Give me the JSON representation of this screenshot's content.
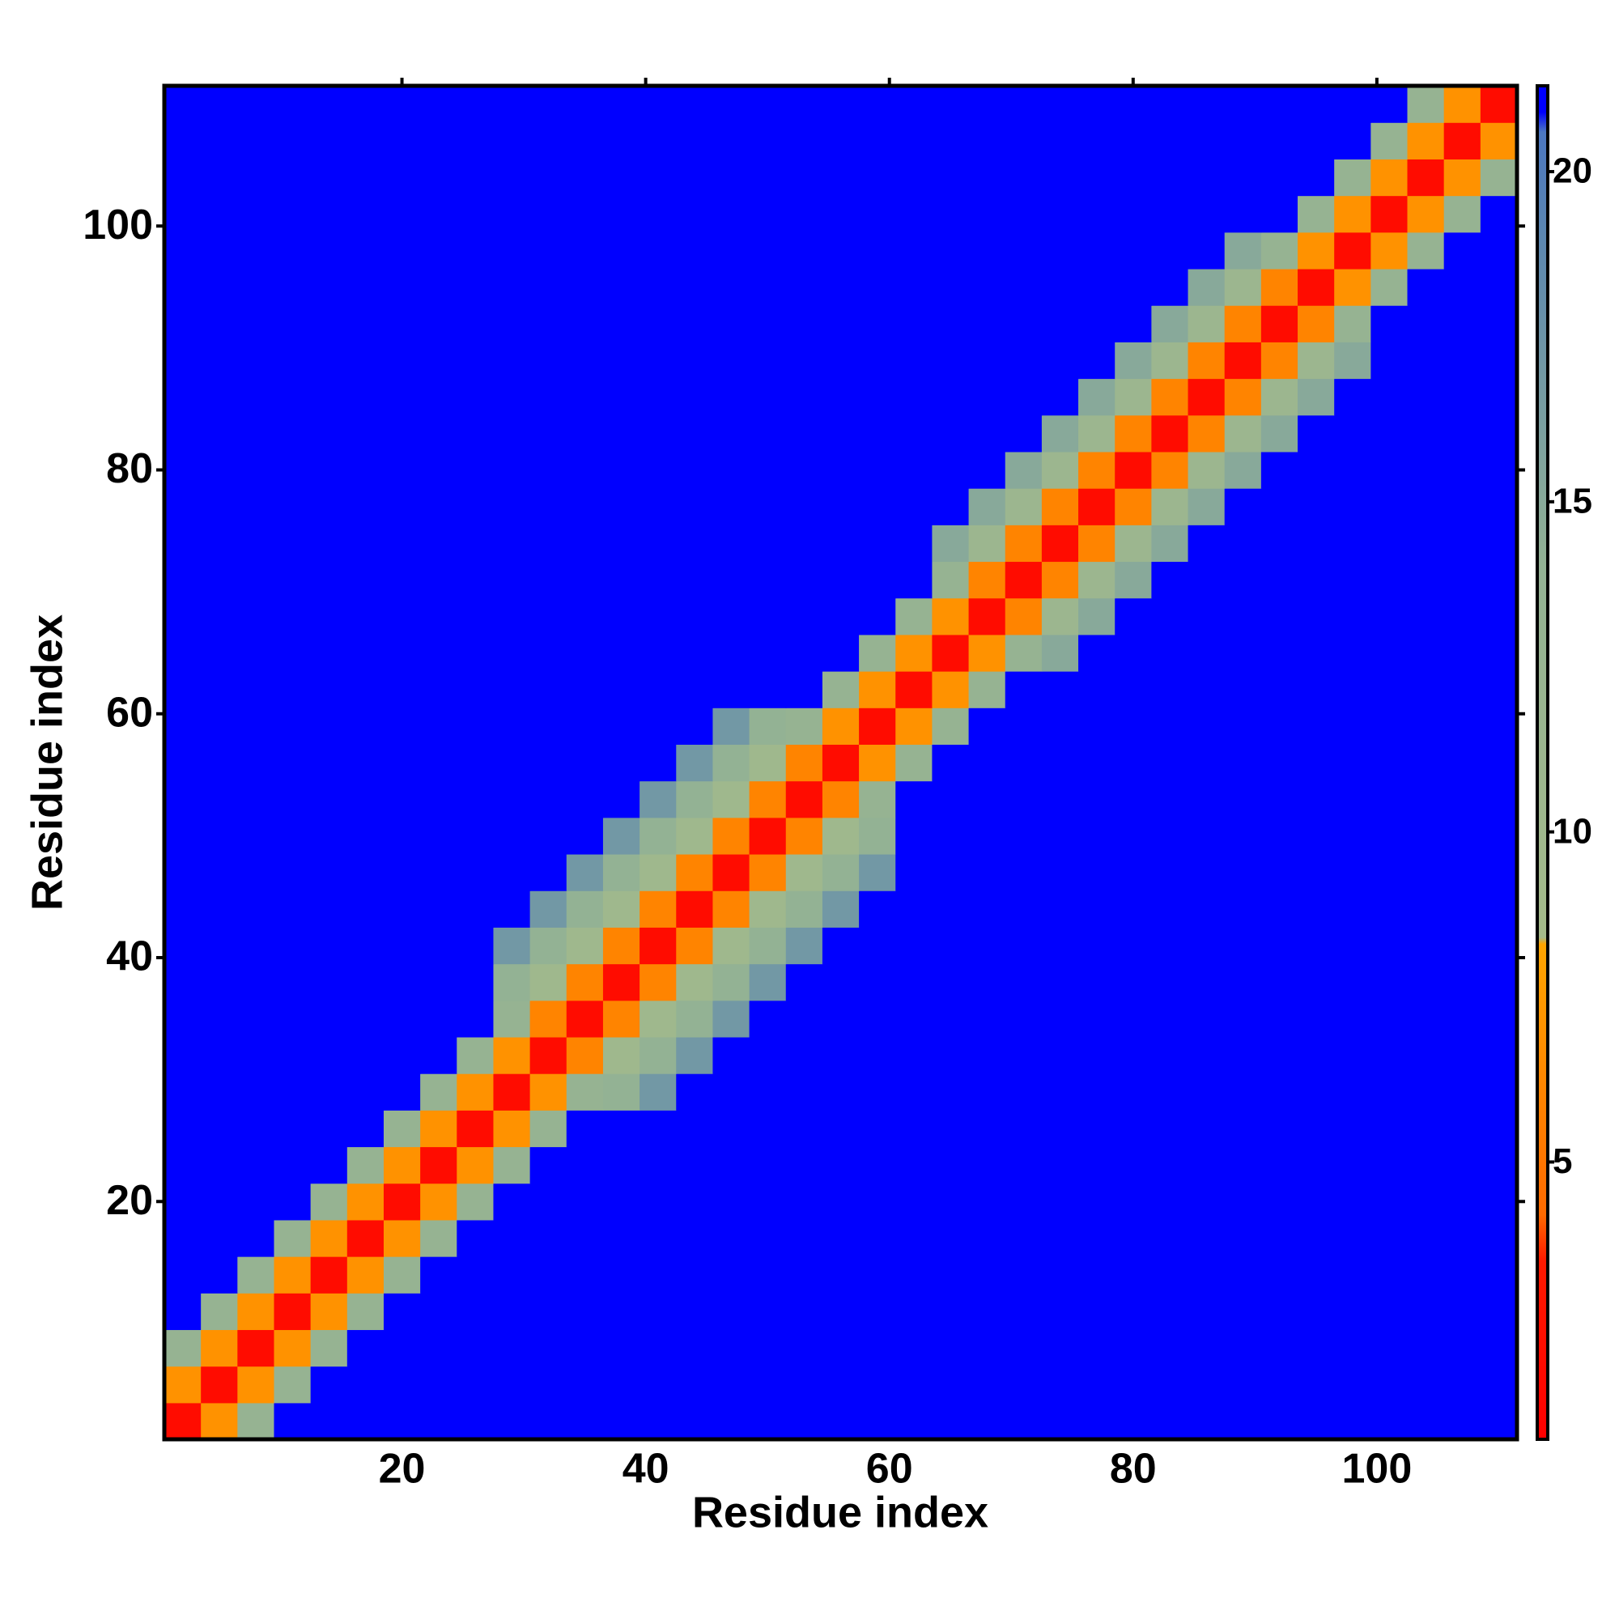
{
  "chart_data": {
    "type": "heatmap",
    "xlabel": "Residue index",
    "ylabel": "Residue index",
    "xlim": [
      0.5,
      111.5
    ],
    "ylim": [
      0.5,
      111.5
    ],
    "xticks": [
      20,
      40,
      60,
      80,
      100
    ],
    "yticks": [
      20,
      40,
      60,
      80,
      100
    ],
    "x": [
      2,
      5,
      8,
      11,
      14,
      17,
      20,
      23,
      26,
      29,
      32,
      35,
      38,
      41,
      44,
      47,
      50,
      53,
      56,
      59,
      62,
      65,
      68,
      71,
      74,
      77,
      80,
      83,
      86,
      89,
      92,
      95,
      98,
      101,
      104,
      107,
      110
    ],
    "y": [
      2,
      5,
      8,
      11,
      14,
      17,
      20,
      23,
      26,
      29,
      32,
      35,
      38,
      41,
      44,
      47,
      50,
      53,
      56,
      59,
      62,
      65,
      68,
      71,
      74,
      77,
      80,
      83,
      86,
      89,
      92,
      95,
      98,
      101,
      104,
      107,
      110
    ],
    "zlim": [
      0.8,
      21.3
    ],
    "zticks": [
      5,
      10,
      15,
      20
    ],
    "colorscale": [
      [
        0.8,
        "#ff0000"
      ],
      [
        3.5,
        "#ff1a00"
      ],
      [
        4.2,
        "#ff6a00"
      ],
      [
        8.3,
        "#ffa500"
      ],
      [
        8.4,
        "#a4ba8a"
      ],
      [
        14,
        "#93b294"
      ],
      [
        19,
        "#5c87b0"
      ],
      [
        20.6,
        "#4c77c0"
      ],
      [
        20.9,
        "#0000ff"
      ],
      [
        21.3,
        "#0000ff"
      ]
    ],
    "values": [
      [
        2,
        7,
        13,
        21,
        21,
        21,
        21,
        21,
        21,
        21,
        21,
        21,
        21,
        21,
        21,
        21,
        21,
        21,
        21,
        21,
        21,
        21,
        21,
        21,
        21,
        21,
        21,
        21,
        21,
        21,
        21,
        21,
        21,
        21,
        21,
        21,
        21
      ],
      [
        7,
        2,
        7,
        13,
        21,
        21,
        21,
        21,
        21,
        21,
        21,
        21,
        21,
        21,
        21,
        21,
        21,
        21,
        21,
        21,
        21,
        21,
        21,
        21,
        21,
        21,
        21,
        21,
        21,
        21,
        21,
        21,
        21,
        21,
        21,
        21,
        21
      ],
      [
        13,
        7,
        2,
        7,
        13,
        21,
        21,
        21,
        21,
        21,
        21,
        21,
        21,
        21,
        21,
        21,
        21,
        21,
        21,
        21,
        21,
        21,
        21,
        21,
        21,
        21,
        21,
        21,
        21,
        21,
        21,
        21,
        21,
        21,
        21,
        21,
        21
      ],
      [
        21,
        13,
        7,
        2,
        7,
        13,
        21,
        21,
        21,
        21,
        21,
        21,
        21,
        21,
        21,
        21,
        21,
        21,
        21,
        21,
        21,
        21,
        21,
        21,
        21,
        21,
        21,
        21,
        21,
        21,
        21,
        21,
        21,
        21,
        21,
        21,
        21
      ],
      [
        21,
        21,
        13,
        7,
        2,
        7,
        13,
        21,
        21,
        21,
        21,
        21,
        21,
        21,
        21,
        21,
        21,
        21,
        21,
        21,
        21,
        21,
        21,
        21,
        21,
        21,
        21,
        21,
        21,
        21,
        21,
        21,
        21,
        21,
        21,
        21,
        21
      ],
      [
        21,
        21,
        21,
        13,
        7,
        2,
        7,
        13,
        21,
        21,
        21,
        21,
        21,
        21,
        21,
        21,
        21,
        21,
        21,
        21,
        21,
        21,
        21,
        21,
        21,
        21,
        21,
        21,
        21,
        21,
        21,
        21,
        21,
        21,
        21,
        21,
        21
      ],
      [
        21,
        21,
        21,
        21,
        13,
        7,
        2,
        7,
        13,
        21,
        21,
        21,
        21,
        21,
        21,
        21,
        21,
        21,
        21,
        21,
        21,
        21,
        21,
        21,
        21,
        21,
        21,
        21,
        21,
        21,
        21,
        21,
        21,
        21,
        21,
        21,
        21
      ],
      [
        21,
        21,
        21,
        21,
        21,
        13,
        7,
        2,
        7,
        13,
        21,
        21,
        21,
        21,
        21,
        21,
        21,
        21,
        21,
        21,
        21,
        21,
        21,
        21,
        21,
        21,
        21,
        21,
        21,
        21,
        21,
        21,
        21,
        21,
        21,
        21,
        21
      ],
      [
        21,
        21,
        21,
        21,
        21,
        21,
        13,
        7,
        2,
        7,
        13,
        21,
        21,
        21,
        21,
        21,
        21,
        21,
        21,
        21,
        21,
        21,
        21,
        21,
        21,
        21,
        21,
        21,
        21,
        21,
        21,
        21,
        21,
        21,
        21,
        21,
        21
      ],
      [
        21,
        21,
        21,
        21,
        21,
        21,
        21,
        13,
        7,
        2,
        7,
        13,
        14,
        17,
        21,
        21,
        21,
        21,
        21,
        21,
        21,
        21,
        21,
        21,
        21,
        21,
        21,
        21,
        21,
        21,
        21,
        21,
        21,
        21,
        21,
        21,
        21
      ],
      [
        21,
        21,
        21,
        21,
        21,
        21,
        21,
        21,
        13,
        7,
        2,
        6,
        10,
        14,
        17,
        21,
        21,
        21,
        21,
        21,
        21,
        21,
        21,
        21,
        21,
        21,
        21,
        21,
        21,
        21,
        21,
        21,
        21,
        21,
        21,
        21,
        21
      ],
      [
        21,
        21,
        21,
        21,
        21,
        21,
        21,
        21,
        21,
        13,
        6,
        2,
        6,
        10,
        14,
        17,
        21,
        21,
        21,
        21,
        21,
        21,
        21,
        21,
        21,
        21,
        21,
        21,
        21,
        21,
        21,
        21,
        21,
        21,
        21,
        21,
        21
      ],
      [
        21,
        21,
        21,
        21,
        21,
        21,
        21,
        21,
        21,
        14,
        10,
        6,
        2,
        6,
        10,
        14,
        17,
        21,
        21,
        21,
        21,
        21,
        21,
        21,
        21,
        21,
        21,
        21,
        21,
        21,
        21,
        21,
        21,
        21,
        21,
        21,
        21
      ],
      [
        21,
        21,
        21,
        21,
        21,
        21,
        21,
        21,
        21,
        17,
        14,
        10,
        6,
        2,
        6,
        10,
        14,
        17,
        21,
        21,
        21,
        21,
        21,
        21,
        21,
        21,
        21,
        21,
        21,
        21,
        21,
        21,
        21,
        21,
        21,
        21,
        21
      ],
      [
        21,
        21,
        21,
        21,
        21,
        21,
        21,
        21,
        21,
        21,
        17,
        14,
        10,
        6,
        2,
        6,
        10,
        14,
        17,
        21,
        21,
        21,
        21,
        21,
        21,
        21,
        21,
        21,
        21,
        21,
        21,
        21,
        21,
        21,
        21,
        21,
        21
      ],
      [
        21,
        21,
        21,
        21,
        21,
        21,
        21,
        21,
        21,
        21,
        21,
        17,
        14,
        10,
        6,
        2,
        6,
        10,
        14,
        17,
        21,
        21,
        21,
        21,
        21,
        21,
        21,
        21,
        21,
        21,
        21,
        21,
        21,
        21,
        21,
        21,
        21
      ],
      [
        21,
        21,
        21,
        21,
        21,
        21,
        21,
        21,
        21,
        21,
        21,
        21,
        17,
        14,
        10,
        6,
        2,
        6,
        10,
        14,
        21,
        21,
        21,
        21,
        21,
        21,
        21,
        21,
        21,
        21,
        21,
        21,
        21,
        21,
        21,
        21,
        21
      ],
      [
        21,
        21,
        21,
        21,
        21,
        21,
        21,
        21,
        21,
        21,
        21,
        21,
        21,
        17,
        14,
        10,
        6,
        2,
        6,
        13,
        21,
        21,
        21,
        21,
        21,
        21,
        21,
        21,
        21,
        21,
        21,
        21,
        21,
        21,
        21,
        21,
        21
      ],
      [
        21,
        21,
        21,
        21,
        21,
        21,
        21,
        21,
        21,
        21,
        21,
        21,
        21,
        21,
        17,
        14,
        10,
        6,
        2,
        7,
        13,
        21,
        21,
        21,
        21,
        21,
        21,
        21,
        21,
        21,
        21,
        21,
        21,
        21,
        21,
        21,
        21
      ],
      [
        21,
        21,
        21,
        21,
        21,
        21,
        21,
        21,
        21,
        21,
        21,
        21,
        21,
        21,
        21,
        17,
        14,
        13,
        7,
        2,
        7,
        13,
        21,
        21,
        21,
        21,
        21,
        21,
        21,
        21,
        21,
        21,
        21,
        21,
        21,
        21,
        21
      ],
      [
        21,
        21,
        21,
        21,
        21,
        21,
        21,
        21,
        21,
        21,
        21,
        21,
        21,
        21,
        21,
        21,
        21,
        21,
        13,
        7,
        2,
        7,
        13,
        21,
        21,
        21,
        21,
        21,
        21,
        21,
        21,
        21,
        21,
        21,
        21,
        21,
        21
      ],
      [
        21,
        21,
        21,
        21,
        21,
        21,
        21,
        21,
        21,
        21,
        21,
        21,
        21,
        21,
        21,
        21,
        21,
        21,
        21,
        13,
        7,
        2,
        7,
        13,
        15,
        21,
        21,
        21,
        21,
        21,
        21,
        21,
        21,
        21,
        21,
        21,
        21
      ],
      [
        21,
        21,
        21,
        21,
        21,
        21,
        21,
        21,
        21,
        21,
        21,
        21,
        21,
        21,
        21,
        21,
        21,
        21,
        21,
        21,
        13,
        7,
        2,
        6,
        11,
        15,
        21,
        21,
        21,
        21,
        21,
        21,
        21,
        21,
        21,
        21,
        21
      ],
      [
        21,
        21,
        21,
        21,
        21,
        21,
        21,
        21,
        21,
        21,
        21,
        21,
        21,
        21,
        21,
        21,
        21,
        21,
        21,
        21,
        21,
        13,
        6,
        2,
        6,
        11,
        15,
        21,
        21,
        21,
        21,
        21,
        21,
        21,
        21,
        21,
        21
      ],
      [
        21,
        21,
        21,
        21,
        21,
        21,
        21,
        21,
        21,
        21,
        21,
        21,
        21,
        21,
        21,
        21,
        21,
        21,
        21,
        21,
        21,
        15,
        11,
        6,
        2,
        6,
        11,
        15,
        21,
        21,
        21,
        21,
        21,
        21,
        21,
        21,
        21
      ],
      [
        21,
        21,
        21,
        21,
        21,
        21,
        21,
        21,
        21,
        21,
        21,
        21,
        21,
        21,
        21,
        21,
        21,
        21,
        21,
        21,
        21,
        21,
        15,
        11,
        6,
        2,
        6,
        11,
        15,
        21,
        21,
        21,
        21,
        21,
        21,
        21,
        21
      ],
      [
        21,
        21,
        21,
        21,
        21,
        21,
        21,
        21,
        21,
        21,
        21,
        21,
        21,
        21,
        21,
        21,
        21,
        21,
        21,
        21,
        21,
        21,
        21,
        15,
        11,
        6,
        2,
        6,
        11,
        15,
        21,
        21,
        21,
        21,
        21,
        21,
        21
      ],
      [
        21,
        21,
        21,
        21,
        21,
        21,
        21,
        21,
        21,
        21,
        21,
        21,
        21,
        21,
        21,
        21,
        21,
        21,
        21,
        21,
        21,
        21,
        21,
        21,
        15,
        11,
        6,
        2,
        6,
        11,
        15,
        21,
        21,
        21,
        21,
        21,
        21
      ],
      [
        21,
        21,
        21,
        21,
        21,
        21,
        21,
        21,
        21,
        21,
        21,
        21,
        21,
        21,
        21,
        21,
        21,
        21,
        21,
        21,
        21,
        21,
        21,
        21,
        21,
        15,
        11,
        6,
        2,
        6,
        11,
        15,
        21,
        21,
        21,
        21,
        21
      ],
      [
        21,
        21,
        21,
        21,
        21,
        21,
        21,
        21,
        21,
        21,
        21,
        21,
        21,
        21,
        21,
        21,
        21,
        21,
        21,
        21,
        21,
        21,
        21,
        21,
        21,
        21,
        15,
        11,
        6,
        2,
        6,
        11,
        15,
        21,
        21,
        21,
        21
      ],
      [
        21,
        21,
        21,
        21,
        21,
        21,
        21,
        21,
        21,
        21,
        21,
        21,
        21,
        21,
        21,
        21,
        21,
        21,
        21,
        21,
        21,
        21,
        21,
        21,
        21,
        21,
        21,
        15,
        11,
        6,
        2,
        6,
        13,
        21,
        21,
        21,
        21
      ],
      [
        21,
        21,
        21,
        21,
        21,
        21,
        21,
        21,
        21,
        21,
        21,
        21,
        21,
        21,
        21,
        21,
        21,
        21,
        21,
        21,
        21,
        21,
        21,
        21,
        21,
        21,
        21,
        21,
        15,
        11,
        6,
        2,
        7,
        13,
        21,
        21,
        21
      ],
      [
        21,
        21,
        21,
        21,
        21,
        21,
        21,
        21,
        21,
        21,
        21,
        21,
        21,
        21,
        21,
        21,
        21,
        21,
        21,
        21,
        21,
        21,
        21,
        21,
        21,
        21,
        21,
        21,
        21,
        15,
        13,
        7,
        2,
        7,
        13,
        21,
        21
      ],
      [
        21,
        21,
        21,
        21,
        21,
        21,
        21,
        21,
        21,
        21,
        21,
        21,
        21,
        21,
        21,
        21,
        21,
        21,
        21,
        21,
        21,
        21,
        21,
        21,
        21,
        21,
        21,
        21,
        21,
        21,
        21,
        13,
        7,
        2,
        7,
        13,
        21
      ],
      [
        21,
        21,
        21,
        21,
        21,
        21,
        21,
        21,
        21,
        21,
        21,
        21,
        21,
        21,
        21,
        21,
        21,
        21,
        21,
        21,
        21,
        21,
        21,
        21,
        21,
        21,
        21,
        21,
        21,
        21,
        21,
        21,
        13,
        7,
        2,
        7,
        13
      ],
      [
        21,
        21,
        21,
        21,
        21,
        21,
        21,
        21,
        21,
        21,
        21,
        21,
        21,
        21,
        21,
        21,
        21,
        21,
        21,
        21,
        21,
        21,
        21,
        21,
        21,
        21,
        21,
        21,
        21,
        21,
        21,
        21,
        21,
        13,
        7,
        2,
        7
      ],
      [
        21,
        21,
        21,
        21,
        21,
        21,
        21,
        21,
        21,
        21,
        21,
        21,
        21,
        21,
        21,
        21,
        21,
        21,
        21,
        21,
        21,
        21,
        21,
        21,
        21,
        21,
        21,
        21,
        21,
        21,
        21,
        21,
        21,
        21,
        13,
        7,
        2
      ]
    ]
  }
}
